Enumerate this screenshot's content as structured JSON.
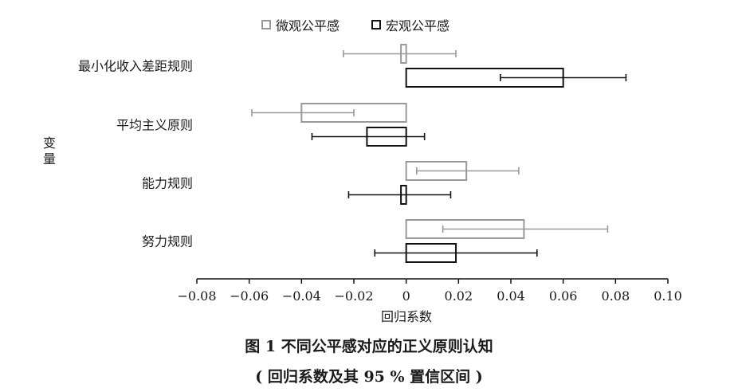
{
  "chart_data": {
    "type": "bar",
    "orientation": "horizontal",
    "categories": [
      "最小化收入差距规则",
      "平均主义原则",
      "能力规则",
      "努力规则"
    ],
    "series": [
      {
        "name": "微观公平感",
        "color": "#999999",
        "values": [
          -0.002,
          -0.04,
          0.023,
          0.045
        ],
        "ci_low": [
          -0.024,
          -0.059,
          0.004,
          0.014
        ],
        "ci_high": [
          0.019,
          -0.02,
          0.043,
          0.077
        ]
      },
      {
        "name": "宏观公平感",
        "color": "#111111",
        "values": [
          0.06,
          -0.015,
          -0.002,
          0.019
        ],
        "ci_low": [
          0.036,
          -0.036,
          -0.022,
          -0.012
        ],
        "ci_high": [
          0.084,
          0.007,
          0.017,
          0.05
        ]
      }
    ],
    "xlim": [
      -0.08,
      0.1
    ],
    "xticks": [
      "−0.08",
      "−0.06",
      "−0.04",
      "−0.02",
      "0",
      "0.02",
      "0.04",
      "0.06",
      "0.08",
      "0.10"
    ],
    "xlabel": "回归系数",
    "ylabel": "变量",
    "legend_position": "top",
    "grid": false
  },
  "caption": {
    "title": "图 1    不同公平感对应的正义原则认知",
    "subtitle": "( 回归系数及其 95 % 置信区间 )"
  }
}
